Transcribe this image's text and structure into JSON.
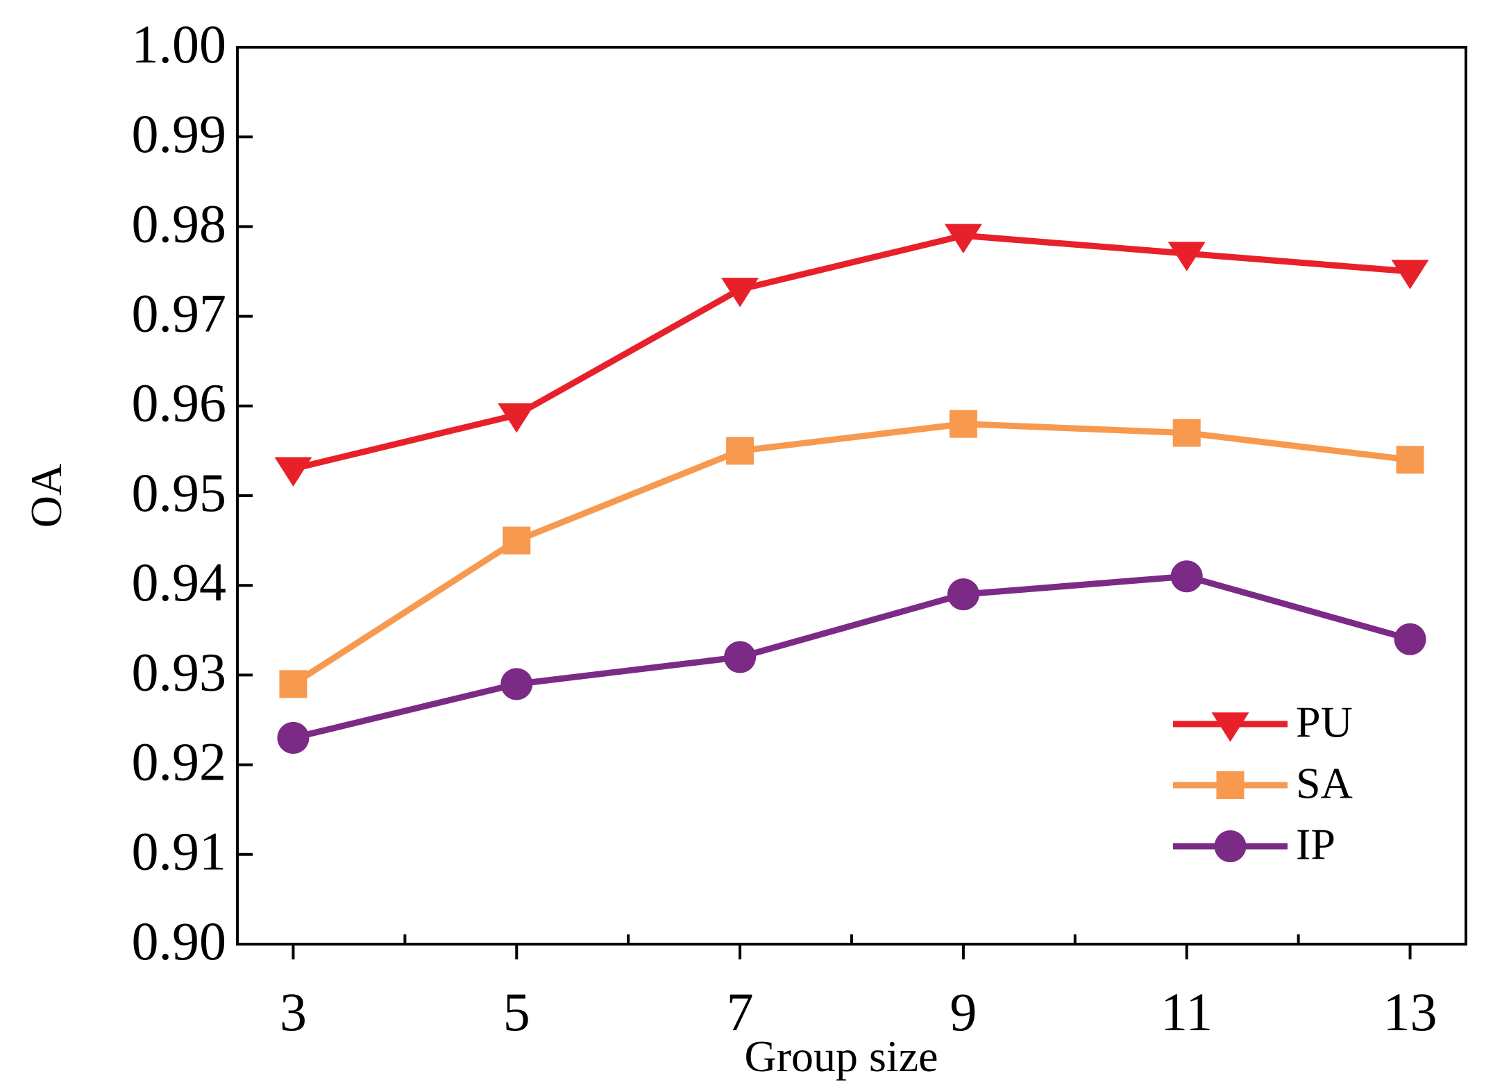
{
  "chart_data": {
    "type": "line",
    "title": "",
    "xlabel": "Group size",
    "ylabel": "OA",
    "x": [
      3,
      5,
      7,
      9,
      11,
      13
    ],
    "x_ticks": [
      3,
      5,
      7,
      9,
      11,
      13
    ],
    "x_tick_labels": [
      "3",
      "5",
      "7",
      "9",
      "11",
      "13"
    ],
    "xlim": [
      2.5,
      13.5
    ],
    "ylim": [
      0.9,
      1.0
    ],
    "y_ticks": [
      0.9,
      0.91,
      0.92,
      0.93,
      0.94,
      0.95,
      0.96,
      0.97,
      0.98,
      0.99,
      1.0
    ],
    "y_tick_labels": [
      "0.90",
      "0.91",
      "0.92",
      "0.93",
      "0.94",
      "0.95",
      "0.96",
      "0.97",
      "0.98",
      "0.99",
      "1.00"
    ],
    "grid": false,
    "legend_position": "bottom-right",
    "series": [
      {
        "name": "PU",
        "marker": "triangle-down",
        "color": "#e8202a",
        "values": [
          0.953,
          0.959,
          0.973,
          0.979,
          0.977,
          0.975
        ]
      },
      {
        "name": "SA",
        "marker": "square",
        "color": "#f7994e",
        "values": [
          0.929,
          0.945,
          0.955,
          0.958,
          0.957,
          0.954
        ]
      },
      {
        "name": "IP",
        "marker": "circle",
        "color": "#7b2a86",
        "values": [
          0.923,
          0.929,
          0.932,
          0.939,
          0.941,
          0.934
        ]
      }
    ]
  }
}
